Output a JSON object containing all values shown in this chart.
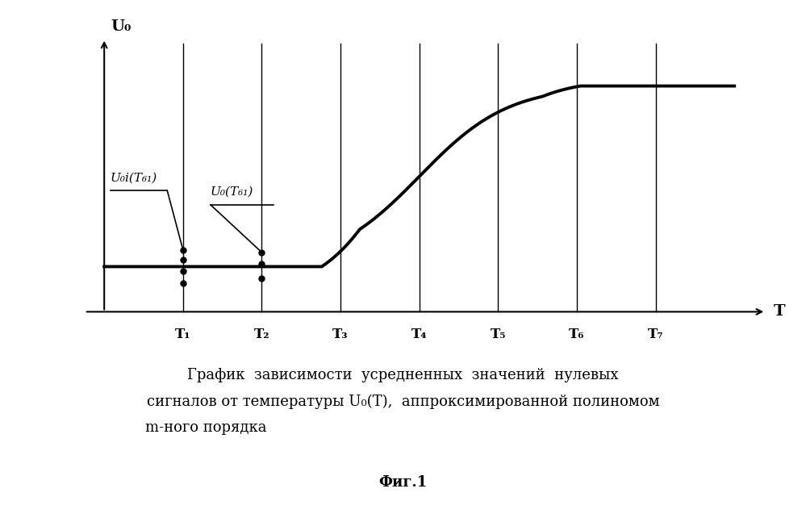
{
  "fig_label": "Фиг.1",
  "xlabel": "T",
  "ylabel": "U₀",
  "t_labels": [
    "T₁",
    "T₂",
    "T₃",
    "T₄",
    "T₅",
    "T₆",
    "T₇"
  ],
  "t_positions": [
    1,
    2,
    3,
    4,
    5,
    6,
    7
  ],
  "annotation1": "U₀i(T₆₁)",
  "annotation2": "U₀(T₆₁)",
  "background_color": "#ffffff",
  "curve_color": "#000000",
  "ylim": [
    -0.18,
    1.05
  ],
  "xlim": [
    -0.3,
    8.5
  ],
  "caption_line1": "График  зависимости  усредненных  значений  нулевых",
  "caption_line2": "сигналов от температуры U₀(T),  аппроксимированной полиномом",
  "caption_line3": "m-ного порядка"
}
